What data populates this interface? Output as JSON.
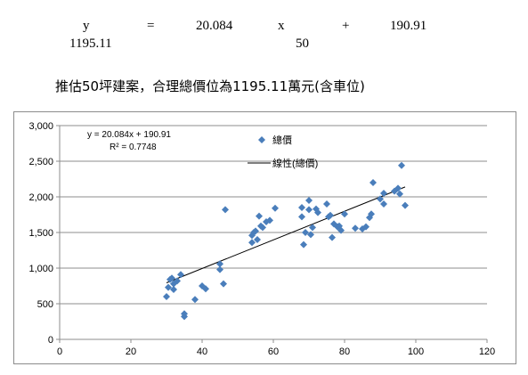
{
  "equation_line": {
    "y_symbol": "y",
    "equals": "=",
    "slope": "20.084",
    "x_symbol": "x",
    "plus": "+",
    "intercept": "190.91"
  },
  "substitution_line": {
    "result": "1195.11",
    "x_value": "50"
  },
  "conclusion": "推估50坪建案，合理總價位為1195.11萬元(含車位)",
  "chart_data": {
    "type": "scatter",
    "title": "",
    "xlabel": "",
    "ylabel": "",
    "xlim": [
      0,
      120
    ],
    "ylim": [
      0,
      3000
    ],
    "x_ticks": [
      "0",
      "20",
      "40",
      "60",
      "80",
      "100",
      "120"
    ],
    "y_ticks": [
      "0",
      "500",
      "1,000",
      "1,500",
      "2,000",
      "2,500",
      "3,000"
    ],
    "grid": "horizontal",
    "legend_position": "top-center",
    "marker_color": "#4a7ebb",
    "trendline_color": "#000000",
    "equation_annotation": "y = 20.084x + 190.91",
    "r2_annotation": "R² = 0.7748",
    "series": [
      {
        "name": "總價",
        "marker": "diamond",
        "points": [
          [
            30,
            600
          ],
          [
            30.5,
            730
          ],
          [
            31,
            840
          ],
          [
            31.5,
            860
          ],
          [
            32,
            700
          ],
          [
            32,
            780
          ],
          [
            33,
            820
          ],
          [
            34,
            910
          ],
          [
            35,
            320
          ],
          [
            35,
            360
          ],
          [
            38,
            560
          ],
          [
            40,
            750
          ],
          [
            41,
            710
          ],
          [
            45,
            1060
          ],
          [
            45,
            980
          ],
          [
            46,
            780
          ],
          [
            46.5,
            1820
          ],
          [
            54,
            1360
          ],
          [
            54,
            1460
          ],
          [
            54.5,
            1500
          ],
          [
            55,
            1520
          ],
          [
            55.5,
            1400
          ],
          [
            56,
            1730
          ],
          [
            56.5,
            1590
          ],
          [
            57,
            1570
          ],
          [
            58,
            1650
          ],
          [
            59,
            1670
          ],
          [
            60.5,
            1840
          ],
          [
            68,
            1850
          ],
          [
            68,
            1720
          ],
          [
            68.5,
            1330
          ],
          [
            69,
            1500
          ],
          [
            70,
            1820
          ],
          [
            70,
            1950
          ],
          [
            70.5,
            1470
          ],
          [
            71,
            1570
          ],
          [
            72,
            1830
          ],
          [
            72.5,
            1780
          ],
          [
            75,
            1900
          ],
          [
            75.5,
            1720
          ],
          [
            76,
            1740
          ],
          [
            76.5,
            1430
          ],
          [
            77,
            1620
          ],
          [
            78,
            1580
          ],
          [
            78.5,
            1590
          ],
          [
            79,
            1530
          ],
          [
            80,
            1760
          ],
          [
            83,
            1560
          ],
          [
            85,
            1550
          ],
          [
            86,
            1580
          ],
          [
            87,
            1710
          ],
          [
            87.5,
            1760
          ],
          [
            88,
            2200
          ],
          [
            90,
            1970
          ],
          [
            91,
            2050
          ],
          [
            91,
            1900
          ],
          [
            94,
            2080
          ],
          [
            95,
            2120
          ],
          [
            95.5,
            2040
          ],
          [
            96,
            2440
          ],
          [
            97,
            1880
          ]
        ]
      },
      {
        "name": "線性(總價)",
        "type": "trendline",
        "slope": 20.084,
        "intercept": 190.91,
        "x_range": [
          30,
          97
        ]
      }
    ]
  }
}
